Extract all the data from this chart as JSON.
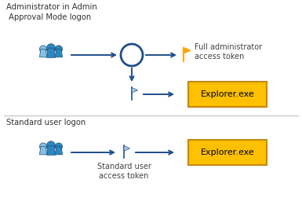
{
  "bg_color": "#ffffff",
  "arrow_color": "#1f4e8c",
  "box_fill": "#ffc000",
  "box_edge": "#c8880a",
  "box_text_color": "#000000",
  "person_dark": "#1a5276",
  "person_mid": "#2e86c1",
  "person_light": "#85c1e9",
  "person_outline": "#1a5276",
  "flag_orange": "#ffa500",
  "flag_blue_fill": "#aec6e8",
  "flag_blue_outline": "#1f4e8c",
  "circle_color": "#1f4e8c",
  "separator_color": "#c0c0c0",
  "title_color": "#333333",
  "label_color": "#444444",
  "title1": "Administrator in Admin\n Approval Mode logon",
  "title2": "Standard user logon",
  "label_full": "Full administrator\naccess token",
  "label_standard": "Standard user\naccess token",
  "box1_text": "Explorer.exe",
  "box2_text": "Explorer.exe",
  "figsize": [
    3.85,
    2.52
  ],
  "dpi": 100
}
